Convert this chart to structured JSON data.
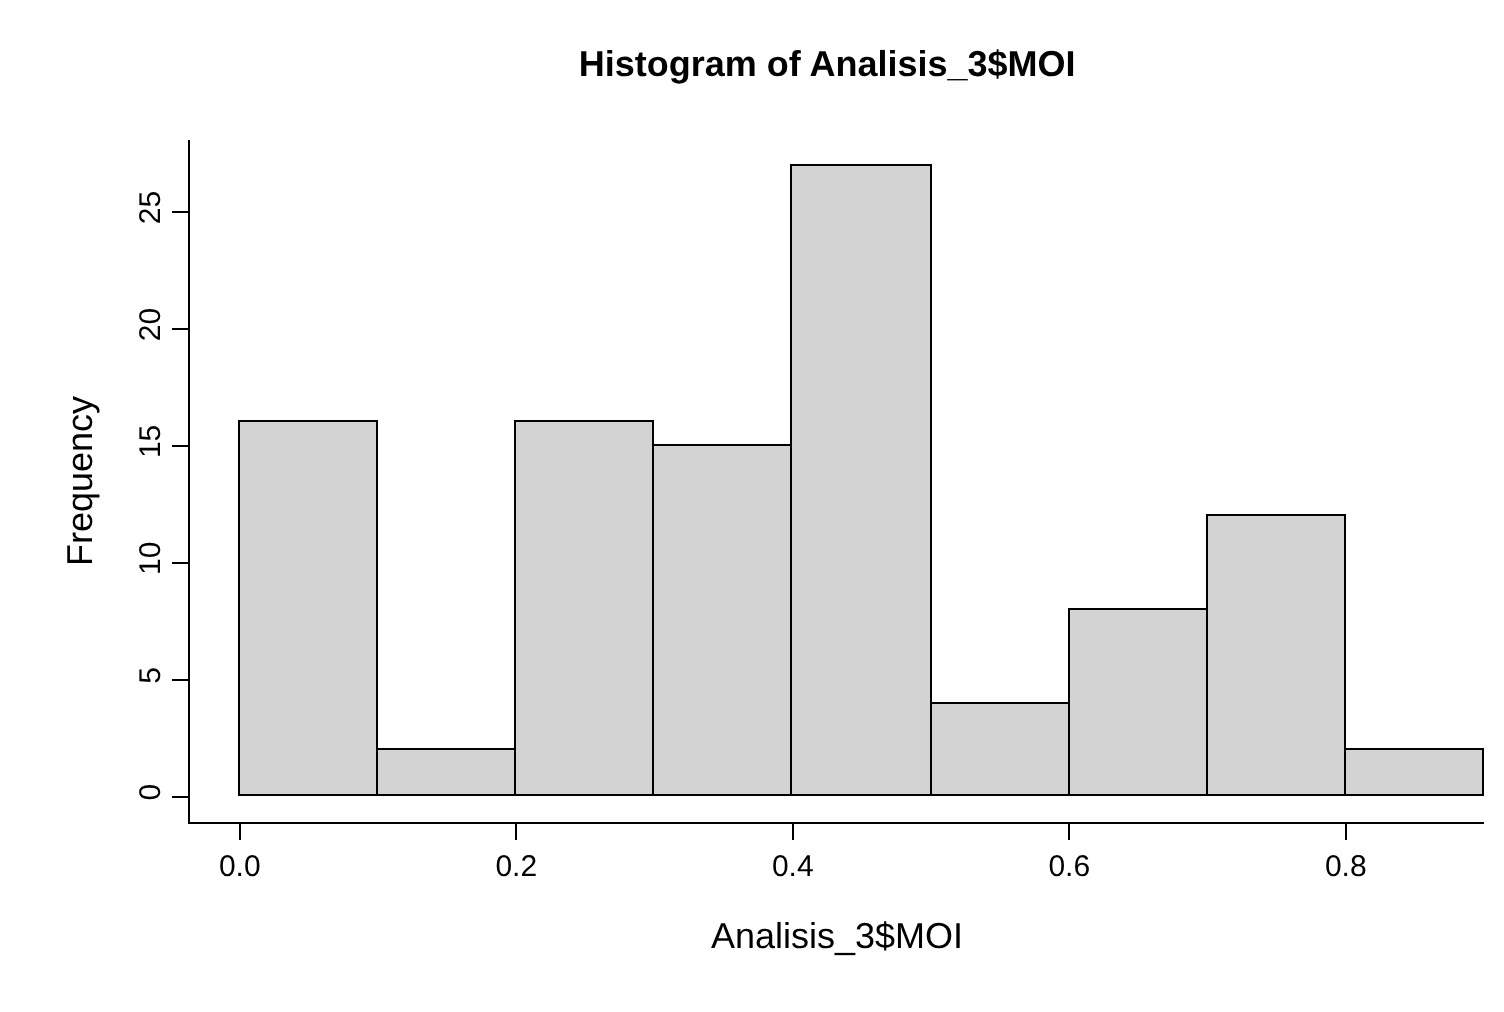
{
  "chart_data": {
    "type": "histogram",
    "title": "Histogram of Analisis_3$MOI",
    "xlabel": "Analisis_3$MOI",
    "ylabel": "Frequency",
    "bins": [
      0,
      0.1,
      0.2,
      0.3,
      0.4,
      0.5,
      0.6,
      0.7,
      0.8,
      0.9
    ],
    "values": [
      16,
      2,
      16,
      15,
      27,
      4,
      8,
      12,
      2
    ],
    "color": "#d3d3d3",
    "xlim": [
      -0.036,
      0.9
    ],
    "xticks": [
      {
        "value": 0,
        "label": "0.0"
      },
      0.2,
      0.4,
      0.6,
      0.8
    ],
    "ylim": [
      -1.08,
      28.08
    ],
    "yticks": [
      0,
      5,
      10,
      15,
      20,
      25
    ],
    "grid": false,
    "legend": false
  }
}
